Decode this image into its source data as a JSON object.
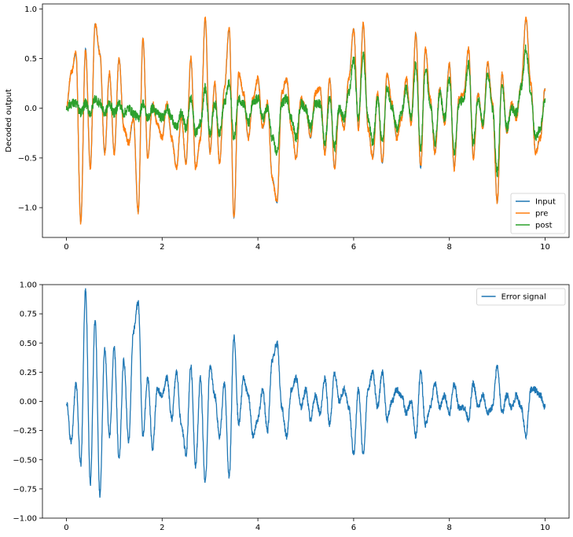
{
  "chart_data": [
    {
      "type": "line",
      "title": "",
      "xlabel": "",
      "ylabel": "Decoded output",
      "xlim": [
        -0.5,
        10.5
      ],
      "ylim": [
        -1.3,
        1.05
      ],
      "xticks": [
        0,
        2,
        4,
        6,
        8,
        10
      ],
      "yticks": [
        -1.0,
        -0.5,
        0.0,
        0.5,
        1.0
      ],
      "ytick_labels": [
        "−1.0",
        "−0.5",
        "0.0",
        "0.5",
        "1.0"
      ],
      "grid": false,
      "legend": "lower right",
      "x": [
        0.0,
        0.1,
        0.2,
        0.3,
        0.4,
        0.5,
        0.6,
        0.7,
        0.8,
        0.9,
        1.0,
        1.1,
        1.2,
        1.3,
        1.4,
        1.5,
        1.6,
        1.7,
        1.8,
        1.9,
        2.0,
        2.1,
        2.2,
        2.3,
        2.4,
        2.5,
        2.6,
        2.7,
        2.8,
        2.9,
        3.0,
        3.1,
        3.2,
        3.3,
        3.4,
        3.5,
        3.6,
        3.7,
        3.8,
        3.9,
        4.0,
        4.1,
        4.2,
        4.3,
        4.4,
        4.5,
        4.6,
        4.7,
        4.8,
        4.9,
        5.0,
        5.1,
        5.2,
        5.3,
        5.4,
        5.5,
        5.6,
        5.7,
        5.8,
        5.9,
        6.0,
        6.1,
        6.2,
        6.3,
        6.4,
        6.5,
        6.6,
        6.7,
        6.8,
        6.9,
        7.0,
        7.1,
        7.2,
        7.3,
        7.4,
        7.5,
        7.6,
        7.7,
        7.8,
        7.9,
        8.0,
        8.1,
        8.2,
        8.3,
        8.4,
        8.5,
        8.6,
        8.7,
        8.8,
        8.9,
        9.0,
        9.1,
        9.2,
        9.3,
        9.4,
        9.5,
        9.6,
        9.7,
        9.8,
        9.9,
        10.0
      ],
      "series": [
        {
          "name": "Input",
          "color": "#1f77b4",
          "noise": 0.0,
          "values": [
            0.0,
            0.35,
            0.55,
            -1.15,
            0.6,
            -0.6,
            0.85,
            0.55,
            -0.45,
            0.35,
            -0.45,
            0.5,
            -0.2,
            -0.35,
            -0.1,
            -1.05,
            0.7,
            -0.5,
            0.05,
            -0.15,
            -0.3,
            0.05,
            -0.3,
            -0.6,
            -0.1,
            -0.55,
            0.5,
            -0.6,
            -0.3,
            0.9,
            -0.45,
            0.25,
            -0.55,
            0.2,
            0.8,
            -1.1,
            0.35,
            0.15,
            -0.3,
            0.1,
            0.3,
            -0.2,
            0.05,
            -0.7,
            -0.95,
            0.15,
            0.3,
            -0.2,
            -0.5,
            0.1,
            0.0,
            -0.3,
            0.15,
            0.2,
            -0.45,
            0.3,
            -0.6,
            0.0,
            -0.2,
            0.3,
            0.8,
            -0.2,
            0.85,
            -0.2,
            -0.5,
            0.15,
            -0.55,
            0.35,
            0.05,
            -0.3,
            -0.1,
            0.3,
            -0.15,
            0.75,
            -0.6,
            0.6,
            0.1,
            -0.45,
            0.2,
            -0.15,
            0.45,
            -0.6,
            0.1,
            0.15,
            0.6,
            -0.5,
            0.15,
            -0.2,
            0.45,
            0.05,
            -0.95,
            0.35,
            -0.25,
            0.05,
            -0.1,
            0.25,
            0.9,
            0.25,
            -0.45,
            -0.3,
            0.2
          ]
        },
        {
          "name": "pre",
          "color": "#ff7f0e",
          "noise": 0.035,
          "values": [
            0.0,
            0.35,
            0.55,
            -1.15,
            0.6,
            -0.6,
            0.85,
            0.55,
            -0.45,
            0.35,
            -0.45,
            0.5,
            -0.2,
            -0.35,
            -0.1,
            -1.05,
            0.7,
            -0.5,
            0.05,
            -0.15,
            -0.3,
            0.05,
            -0.3,
            -0.6,
            -0.1,
            -0.55,
            0.5,
            -0.6,
            -0.3,
            0.9,
            -0.45,
            0.25,
            -0.55,
            0.2,
            0.8,
            -1.1,
            0.35,
            0.15,
            -0.3,
            0.1,
            0.3,
            -0.2,
            0.05,
            -0.7,
            -0.95,
            0.15,
            0.3,
            -0.2,
            -0.5,
            0.1,
            0.0,
            -0.3,
            0.15,
            0.2,
            -0.45,
            0.3,
            -0.6,
            0.0,
            -0.2,
            0.3,
            0.8,
            -0.2,
            0.85,
            -0.2,
            -0.5,
            0.15,
            -0.55,
            0.35,
            0.05,
            -0.3,
            -0.1,
            0.3,
            -0.15,
            0.75,
            -0.6,
            0.6,
            0.1,
            -0.45,
            0.2,
            -0.15,
            0.45,
            -0.6,
            0.1,
            0.15,
            0.6,
            -0.5,
            0.15,
            -0.2,
            0.45,
            0.05,
            -0.95,
            0.35,
            -0.25,
            0.05,
            -0.1,
            0.25,
            0.9,
            0.25,
            -0.45,
            -0.3,
            0.2
          ]
        },
        {
          "name": "post",
          "color": "#2ca02c",
          "noise": 0.05,
          "values": [
            0.0,
            0.05,
            0.05,
            -0.05,
            0.05,
            -0.05,
            0.1,
            0.05,
            -0.05,
            0.05,
            -0.05,
            0.05,
            -0.05,
            0.0,
            -0.05,
            -0.1,
            0.05,
            -0.1,
            0.0,
            -0.05,
            -0.1,
            0.0,
            -0.1,
            -0.2,
            -0.05,
            -0.2,
            0.1,
            -0.25,
            -0.15,
            0.2,
            -0.25,
            0.05,
            -0.25,
            0.05,
            0.25,
            -0.3,
            0.1,
            0.05,
            -0.15,
            0.05,
            0.1,
            -0.1,
            0.0,
            -0.3,
            -0.45,
            0.05,
            0.1,
            -0.1,
            -0.3,
            0.05,
            0.0,
            -0.2,
            0.05,
            0.05,
            -0.35,
            0.1,
            -0.4,
            0.0,
            -0.1,
            0.15,
            0.5,
            -0.1,
            0.55,
            -0.1,
            -0.35,
            0.1,
            -0.35,
            0.2,
            0.0,
            -0.2,
            -0.05,
            0.2,
            -0.1,
            0.45,
            -0.4,
            0.4,
            0.05,
            -0.35,
            0.15,
            -0.1,
            0.3,
            -0.45,
            0.05,
            0.1,
            0.45,
            -0.35,
            0.1,
            -0.15,
            0.35,
            0.0,
            -0.65,
            0.25,
            -0.2,
            0.0,
            -0.05,
            0.2,
            0.6,
            0.15,
            -0.3,
            -0.2,
            0.1
          ]
        }
      ]
    },
    {
      "type": "line",
      "title": "",
      "xlabel": "",
      "ylabel": "",
      "xlim": [
        -0.5,
        10.5
      ],
      "ylim": [
        -1.0,
        1.0
      ],
      "xticks": [
        0,
        2,
        4,
        6,
        8,
        10
      ],
      "yticks": [
        -1.0,
        -0.75,
        -0.5,
        -0.25,
        0.0,
        0.25,
        0.5,
        0.75,
        1.0
      ],
      "ytick_labels": [
        "−1.00",
        "−0.75",
        "−0.50",
        "−0.25",
        "0.00",
        "0.25",
        "0.50",
        "0.75",
        "1.00"
      ],
      "grid": false,
      "legend": "upper right",
      "x": [
        0.0,
        0.1,
        0.2,
        0.3,
        0.4,
        0.5,
        0.6,
        0.7,
        0.8,
        0.9,
        1.0,
        1.1,
        1.2,
        1.3,
        1.4,
        1.5,
        1.6,
        1.7,
        1.8,
        1.9,
        2.0,
        2.1,
        2.2,
        2.3,
        2.4,
        2.5,
        2.6,
        2.7,
        2.8,
        2.9,
        3.0,
        3.1,
        3.2,
        3.3,
        3.4,
        3.5,
        3.6,
        3.7,
        3.8,
        3.9,
        4.0,
        4.1,
        4.2,
        4.3,
        4.4,
        4.5,
        4.6,
        4.7,
        4.8,
        4.9,
        5.0,
        5.1,
        5.2,
        5.3,
        5.4,
        5.5,
        5.6,
        5.7,
        5.8,
        5.9,
        6.0,
        6.1,
        6.2,
        6.3,
        6.4,
        6.5,
        6.6,
        6.7,
        6.8,
        6.9,
        7.0,
        7.1,
        7.2,
        7.3,
        7.4,
        7.5,
        7.6,
        7.7,
        7.8,
        7.9,
        8.0,
        8.1,
        8.2,
        8.3,
        8.4,
        8.5,
        8.6,
        8.7,
        8.8,
        8.9,
        9.0,
        9.1,
        9.2,
        9.3,
        9.4,
        9.5,
        9.6,
        9.7,
        9.8,
        9.9,
        10.0
      ],
      "series": [
        {
          "name": "Error signal",
          "color": "#1f77b4",
          "noise": 0.03,
          "values": [
            0.0,
            -0.35,
            0.15,
            -0.55,
            0.95,
            -0.7,
            0.7,
            -0.8,
            0.45,
            -0.3,
            0.45,
            -0.5,
            0.35,
            -0.35,
            0.6,
            0.85,
            -0.3,
            0.2,
            -0.4,
            0.1,
            0.05,
            0.2,
            -0.15,
            0.25,
            -0.2,
            -0.45,
            0.3,
            -0.55,
            0.2,
            -0.7,
            0.3,
            0.05,
            -0.3,
            0.15,
            -0.65,
            0.55,
            -0.2,
            0.2,
            0.05,
            -0.3,
            -0.15,
            0.1,
            -0.25,
            0.35,
            0.5,
            -0.05,
            -0.3,
            0.1,
            0.2,
            -0.05,
            0.1,
            -0.15,
            0.05,
            -0.1,
            0.2,
            -0.2,
            0.25,
            0.0,
            0.1,
            -0.05,
            -0.45,
            0.1,
            -0.45,
            0.1,
            0.25,
            -0.05,
            0.25,
            -0.15,
            0.0,
            0.1,
            0.05,
            -0.1,
            0.0,
            -0.3,
            0.25,
            -0.2,
            -0.05,
            0.15,
            -0.05,
            0.05,
            -0.1,
            0.15,
            -0.05,
            -0.05,
            -0.15,
            0.15,
            -0.05,
            0.05,
            -0.1,
            -0.05,
            0.3,
            -0.1,
            0.05,
            -0.05,
            0.05,
            -0.05,
            -0.3,
            0.1,
            0.1,
            0.05,
            -0.05
          ]
        }
      ]
    }
  ]
}
